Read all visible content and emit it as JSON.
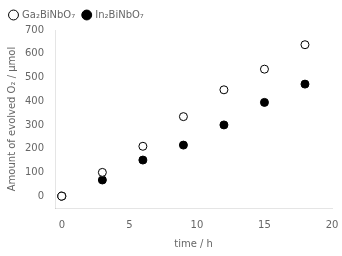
{
  "chart_data": {
    "type": "scatter",
    "xlabel": "time / h",
    "ylabel": "Amount of evolved O₂ / μmol",
    "series": [
      {
        "name": "Ga₂BiNbO₇",
        "color": "#000000",
        "marker": "open_circle",
        "x": [
          0,
          3,
          6,
          9,
          12,
          15,
          18
        ],
        "values": [
          0,
          100,
          210,
          335,
          448,
          535,
          638
        ]
      },
      {
        "name": "In₂BiNbO₇",
        "color": "#000000",
        "marker": "circle",
        "x": [
          0,
          3,
          6,
          9,
          12,
          15,
          18
        ],
        "values": [
          0,
          68,
          152,
          215,
          300,
          395,
          472
        ]
      }
    ],
    "xlim": [
      -0.5,
      20
    ],
    "xticks": [
      0,
      5,
      10,
      15,
      20
    ],
    "ylim": [
      -50,
      700
    ],
    "yticks": [
      0,
      100,
      200,
      300,
      400,
      500,
      600,
      700
    ],
    "grid": false,
    "legend": "upper left"
  }
}
